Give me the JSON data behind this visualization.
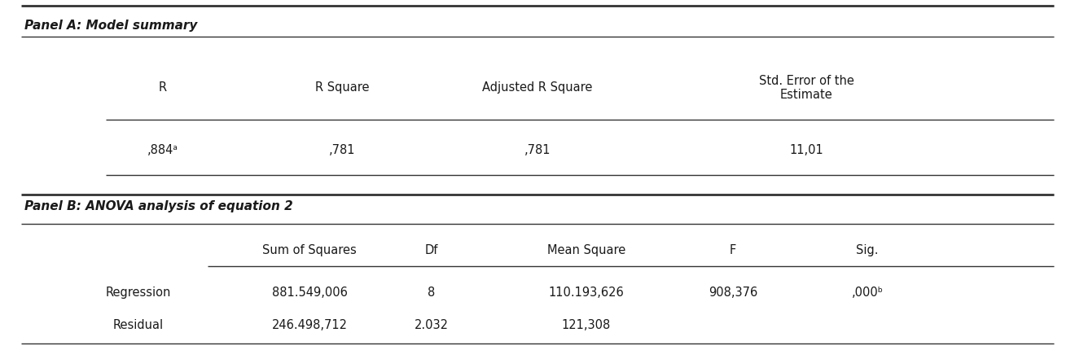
{
  "panel_a_title": "Panel A: Model summary",
  "panel_b_title": "Panel B: ANOVA analysis of equation 2",
  "panel_a_headers": [
    "R",
    "R Square",
    "Adjusted R Square",
    "Std. Error of the\nEstimate"
  ],
  "panel_a_values": [
    ",884ᵃ",
    ",781",
    ",781",
    "11,01"
  ],
  "panel_b_headers": [
    "Sum of Squares",
    "Df",
    "Mean Square",
    "F",
    "Sig."
  ],
  "panel_b_row1_label": "Regression",
  "panel_b_row1_values": [
    "881.549,006",
    "8",
    "110.193,626",
    "908,376",
    ",000ᵇ"
  ],
  "panel_b_row2_label": "Residual",
  "panel_b_row2_values": [
    "246.498,712",
    "2.032",
    "121,308",
    "",
    ""
  ],
  "bg_color": "#ffffff",
  "text_color": "#1a1a1a",
  "line_color": "#333333",
  "fig_width": 13.2,
  "fig_height": 4.31,
  "dpi": 100
}
